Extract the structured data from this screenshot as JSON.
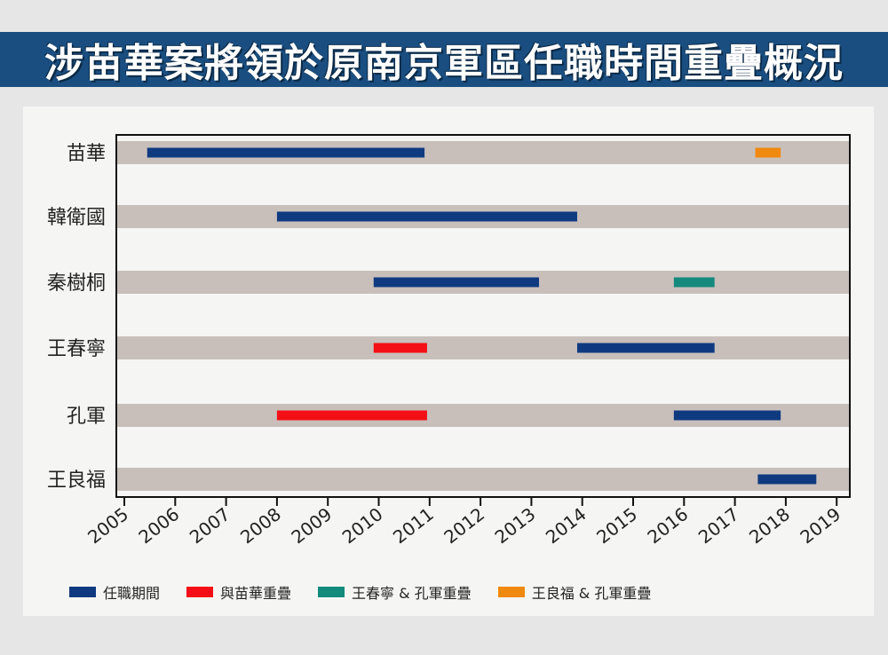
{
  "title": "涉苗華案將領於原南京軍區任職時間重疊概況",
  "chart_data": {
    "type": "gantt",
    "title": "涉苗華案將領於原南京軍區任職時間重疊概況",
    "x_ticks": [
      "2005",
      "2006",
      "2007",
      "2008",
      "2009",
      "2010",
      "2011",
      "2012",
      "2013",
      "2014",
      "2015",
      "2016",
      "2017",
      "2018",
      "2019"
    ],
    "xlim": [
      2005,
      2019.2
    ],
    "rows": [
      {
        "label": "苗華",
        "bars": [
          {
            "start": 2005.45,
            "end": 2010.9,
            "type": "tenure"
          },
          {
            "start": 2017.4,
            "end": 2017.9,
            "type": "overlap_wang_kong"
          }
        ]
      },
      {
        "label": "韓衛國",
        "bars": [
          {
            "start": 2008.0,
            "end": 2013.9,
            "type": "tenure"
          }
        ]
      },
      {
        "label": "秦樹桐",
        "bars": [
          {
            "start": 2009.9,
            "end": 2013.15,
            "type": "tenure"
          },
          {
            "start": 2015.8,
            "end": 2016.6,
            "type": "overlap_wangchun_kong"
          }
        ]
      },
      {
        "label": "王春寧",
        "bars": [
          {
            "start": 2009.9,
            "end": 2010.95,
            "type": "overlap_miao"
          },
          {
            "start": 2013.9,
            "end": 2016.6,
            "type": "tenure"
          }
        ]
      },
      {
        "label": "孔軍",
        "bars": [
          {
            "start": 2008.0,
            "end": 2010.95,
            "type": "overlap_miao"
          },
          {
            "start": 2015.8,
            "end": 2017.9,
            "type": "tenure"
          }
        ]
      },
      {
        "label": "王良福",
        "bars": [
          {
            "start": 2017.45,
            "end": 2018.6,
            "type": "tenure"
          }
        ]
      }
    ],
    "bar_colors": {
      "tenure": "#0f3a80",
      "overlap_miao": "#f40f16",
      "overlap_wangchun_kong": "#148a7c",
      "overlap_wang_kong": "#f0890f"
    },
    "row_band_color": "#c8bfbb",
    "legend": [
      {
        "label": "任職期間",
        "type": "tenure"
      },
      {
        "label": "與苗華重疊",
        "type": "overlap_miao"
      },
      {
        "label": "王春寧 & 孔軍重疊",
        "type": "overlap_wangchun_kong"
      },
      {
        "label": "王良福 & 孔軍重疊",
        "type": "overlap_wang_kong"
      }
    ],
    "legend_placement": "bottom"
  }
}
